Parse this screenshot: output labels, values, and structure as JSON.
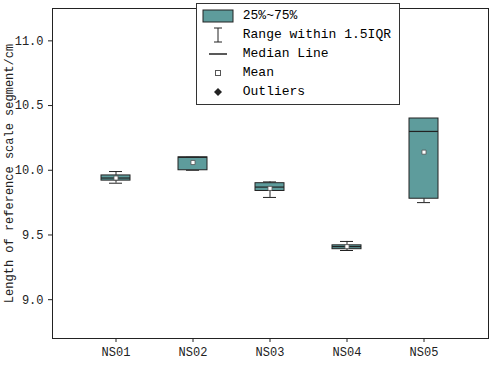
{
  "chart_data": {
    "type": "box",
    "categories": [
      "NS01",
      "NS02",
      "NS03",
      "NS04",
      "NS05"
    ],
    "whisker_low": [
      9.9,
      10.0,
      9.79,
      9.38,
      9.75
    ],
    "q1": [
      9.92,
      10.0,
      9.84,
      9.39,
      9.78
    ],
    "median": [
      9.94,
      10.1,
      9.87,
      9.41,
      10.3
    ],
    "q3": [
      9.96,
      10.1,
      9.9,
      9.42,
      10.4
    ],
    "whisker_high": [
      9.99,
      10.1,
      9.91,
      9.45,
      10.4
    ],
    "mean": [
      9.94,
      10.06,
      9.86,
      9.41,
      10.14
    ],
    "color": "#5e9c9c",
    "y_label": "Length of reference scale segment/cm",
    "ylim": [
      8.7,
      11.25
    ],
    "yticks": [
      {
        "value": 9.0,
        "label": "9.0"
      },
      {
        "value": 9.5,
        "label": "9.5"
      },
      {
        "value": 10.0,
        "label": "10.0"
      },
      {
        "value": 10.5,
        "label": "10.5"
      },
      {
        "value": 11.0,
        "label": "11.0"
      }
    ],
    "legend": "upper right",
    "legend_entries": [
      "25%~75%",
      "Range within 1.5IQR",
      "Median Line",
      "Mean",
      "Outliers"
    ]
  }
}
